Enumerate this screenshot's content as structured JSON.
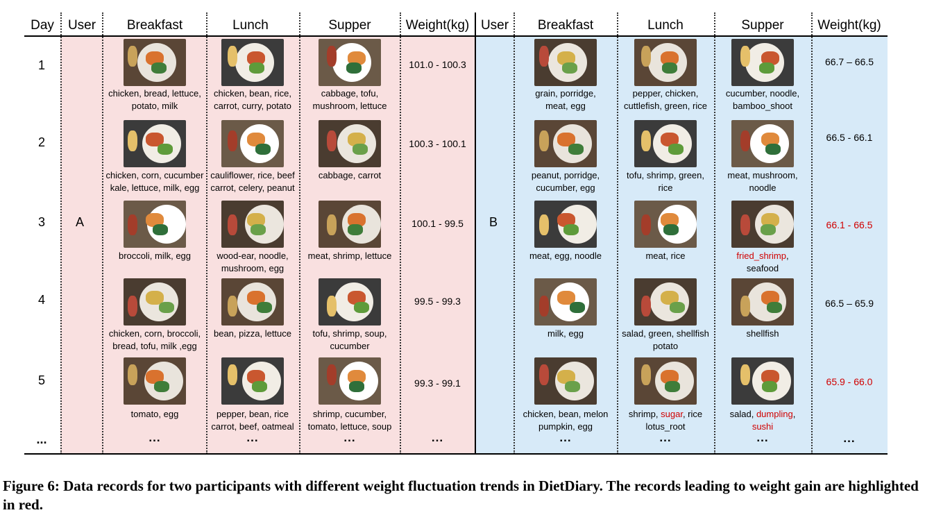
{
  "headers": {
    "day": "Day",
    "user_a": "User",
    "breakfast_a": "Breakfast",
    "lunch_a": "Lunch",
    "supper_a": "Supper",
    "weight_a": "Weight(kg)",
    "user_b": "User",
    "breakfast_b": "Breakfast",
    "lunch_b": "Lunch",
    "supper_b": "Supper",
    "weight_b": "Weight(kg)"
  },
  "days": [
    "1",
    "2",
    "3",
    "4",
    "5",
    "..."
  ],
  "users": {
    "a": "A",
    "b": "B"
  },
  "user_a": {
    "weights": [
      "101.0 - 100.3",
      "100.3 - 100.1",
      "100.1 - 99.5",
      "99.5 - 99.3",
      "99.3 - 99.1",
      "..."
    ],
    "breakfast": [
      [
        {
          "t": "chicken, bread, lettuce,\npotato, milk"
        }
      ],
      [
        {
          "t": "chicken, corn, cucumber\nkale, lettuce, milk, egg"
        }
      ],
      [
        {
          "t": "broccoli, milk, egg"
        }
      ],
      [
        {
          "t": "chicken, corn, broccoli,\nbread, tofu, milk ,egg"
        }
      ],
      [
        {
          "t": "tomato,  egg"
        }
      ]
    ],
    "lunch": [
      [
        {
          "t": "chicken, bean, rice,\ncarrot, curry, potato"
        }
      ],
      [
        {
          "t": "cauliflower, rice, beef\ncarrot, celery, peanut"
        }
      ],
      [
        {
          "t": "wood-ear, noodle,\nmushroom, egg"
        }
      ],
      [
        {
          "t": "bean, pizza, lettuce"
        }
      ],
      [
        {
          "t": "pepper, bean, rice\ncarrot, beef, oatmeal"
        }
      ]
    ],
    "supper": [
      [
        {
          "t": "cabbage, tofu,\nmushroom, lettuce"
        }
      ],
      [
        {
          "t": "cabbage, carrot"
        }
      ],
      [
        {
          "t": "meat, shrimp, lettuce"
        }
      ],
      [
        {
          "t": "tofu,  shrimp,  soup,\ncucumber"
        }
      ],
      [
        {
          "t": "shrimp, cucumber,\ntomato, lettuce, soup"
        }
      ]
    ]
  },
  "user_b": {
    "weights": [
      {
        "t": "66.7 – 66.5",
        "red": false
      },
      {
        "t": "66.5 - 66.1",
        "red": false
      },
      {
        "t": "66.1 - 66.5",
        "red": true
      },
      {
        "t": "66.5 – 65.9",
        "red": false
      },
      {
        "t": "65.9 - 66.0",
        "red": true
      },
      {
        "t": "...",
        "red": false
      }
    ],
    "breakfast": [
      [
        {
          "t": "grain, porridge,\nmeat, egg"
        }
      ],
      [
        {
          "t": "peanut, porridge,\ncucumber, egg"
        }
      ],
      [
        {
          "t": "meat, egg, noodle"
        }
      ],
      [
        {
          "t": "milk, egg"
        }
      ],
      [
        {
          "t": "chicken, bean, melon\npumpkin, egg"
        }
      ]
    ],
    "lunch": [
      [
        {
          "t": "pepper, chicken,\ncuttlefish, green, rice"
        }
      ],
      [
        {
          "t": "tofu, shrimp, green,\nrice"
        }
      ],
      [
        {
          "t": "meat, rice"
        }
      ],
      [
        {
          "t": "salad, green, shellfish\npotato"
        }
      ],
      [
        {
          "t": "shrimp, "
        },
        {
          "t": "sugar",
          "red": true
        },
        {
          "t": ", rice\nlotus_root"
        }
      ]
    ],
    "supper": [
      [
        {
          "t": "cucumber, noodle,\nbamboo_shoot"
        }
      ],
      [
        {
          "t": "meat, mushroom,\nnoodle"
        }
      ],
      [
        {
          "t": "fried_shrimp",
          "red": true
        },
        {
          "t": ",\nseafood"
        }
      ],
      [
        {
          "t": "shellfish"
        }
      ],
      [
        {
          "t": "salad, "
        },
        {
          "t": "dumpling",
          "red": true
        },
        {
          "t": ",\n"
        },
        {
          "t": "sushi",
          "red": true
        }
      ]
    ]
  },
  "ellipsis": "...",
  "caption": "Figure 6: Data records for two participants with different weight fluctuation trends in DietDiary. The records leading to weight gain are highlighted in red.",
  "colors": {
    "user_a_bg": "#f9e0e0",
    "user_b_bg": "#d7eaf8",
    "highlight_red": "#d00000"
  }
}
